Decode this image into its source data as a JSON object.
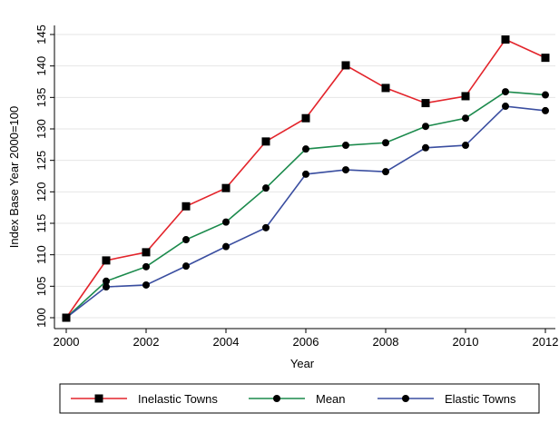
{
  "chart_data": {
    "type": "line",
    "x_label": "Year",
    "y_label": "Index Base Year 2000=100",
    "x": [
      2000,
      2001,
      2002,
      2003,
      2004,
      2005,
      2006,
      2007,
      2008,
      2009,
      2010,
      2011,
      2012
    ],
    "series": [
      {
        "name": "Inelastic Towns",
        "color": "#e3242b",
        "marker": "square",
        "values": [
          100,
          109.1,
          110.4,
          117.7,
          120.6,
          128.0,
          131.7,
          140.1,
          136.5,
          134.1,
          135.2,
          144.2,
          141.3
        ]
      },
      {
        "name": "Mean",
        "color": "#1b8a4c",
        "marker": "circle",
        "values": [
          100,
          105.8,
          108.1,
          112.4,
          115.2,
          120.6,
          126.8,
          127.4,
          127.8,
          130.4,
          131.7,
          135.9,
          135.4
        ]
      },
      {
        "name": "Elastic Towns",
        "color": "#3a4ea0",
        "marker": "circle",
        "values": [
          100,
          104.9,
          105.2,
          108.2,
          111.3,
          114.3,
          122.8,
          123.5,
          123.2,
          127.0,
          127.4,
          133.6,
          132.9
        ]
      }
    ],
    "xlim": [
      2000,
      2012
    ],
    "xticks": [
      2000,
      2002,
      2004,
      2006,
      2008,
      2010,
      2012
    ],
    "ylim": [
      100,
      145
    ],
    "yticks": [
      100,
      105,
      110,
      115,
      120,
      125,
      130,
      135,
      140,
      145
    ],
    "grid": true,
    "legend": "bottom"
  }
}
